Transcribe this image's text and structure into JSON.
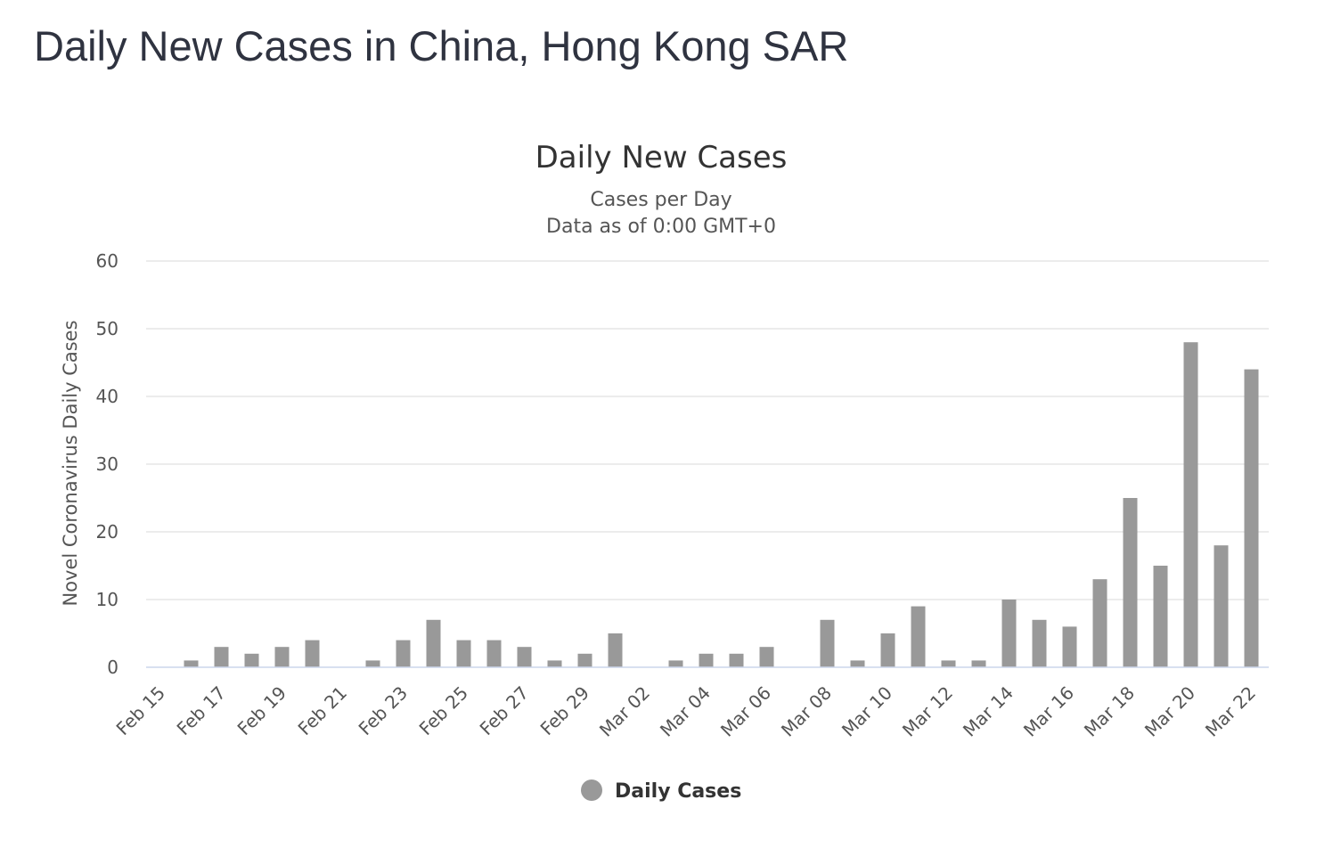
{
  "page": {
    "title": "Daily New Cases in China, Hong Kong SAR"
  },
  "chart_data": {
    "type": "bar",
    "title": "Daily New Cases",
    "subtitle_lines": [
      "Cases per Day",
      "Data as of 0:00 GMT+0"
    ],
    "xlabel": "",
    "ylabel": "Novel Coronavirus Daily Cases",
    "ylim": [
      0,
      60
    ],
    "yticks": [
      0,
      10,
      20,
      30,
      40,
      50,
      60
    ],
    "grid": true,
    "bar_color": "#999999",
    "categories": [
      "Feb 15",
      "Feb 16",
      "Feb 17",
      "Feb 18",
      "Feb 19",
      "Feb 20",
      "Feb 21",
      "Feb 22",
      "Feb 23",
      "Feb 24",
      "Feb 25",
      "Feb 26",
      "Feb 27",
      "Feb 28",
      "Feb 29",
      "Mar 01",
      "Mar 02",
      "Mar 03",
      "Mar 04",
      "Mar 05",
      "Mar 06",
      "Mar 07",
      "Mar 08",
      "Mar 09",
      "Mar 10",
      "Mar 11",
      "Mar 12",
      "Mar 13",
      "Mar 14",
      "Mar 15",
      "Mar 16",
      "Mar 17",
      "Mar 18",
      "Mar 19",
      "Mar 20",
      "Mar 21",
      "Mar 22"
    ],
    "tick_labels": [
      "Feb 15",
      "Feb 17",
      "Feb 19",
      "Feb 21",
      "Feb 23",
      "Feb 25",
      "Feb 27",
      "Feb 29",
      "Mar 02",
      "Mar 04",
      "Mar 06",
      "Mar 08",
      "Mar 10",
      "Mar 12",
      "Mar 14",
      "Mar 16",
      "Mar 18",
      "Mar 20",
      "Mar 22"
    ],
    "series": [
      {
        "name": "Daily Cases",
        "values": [
          0,
          1,
          3,
          2,
          3,
          4,
          0,
          1,
          4,
          7,
          4,
          4,
          3,
          1,
          2,
          5,
          0,
          1,
          2,
          2,
          3,
          0,
          7,
          1,
          5,
          9,
          1,
          1,
          10,
          7,
          6,
          13,
          25,
          15,
          48,
          18,
          44
        ]
      }
    ],
    "legend": {
      "position": "bottom-center",
      "label": "Daily Cases"
    }
  }
}
